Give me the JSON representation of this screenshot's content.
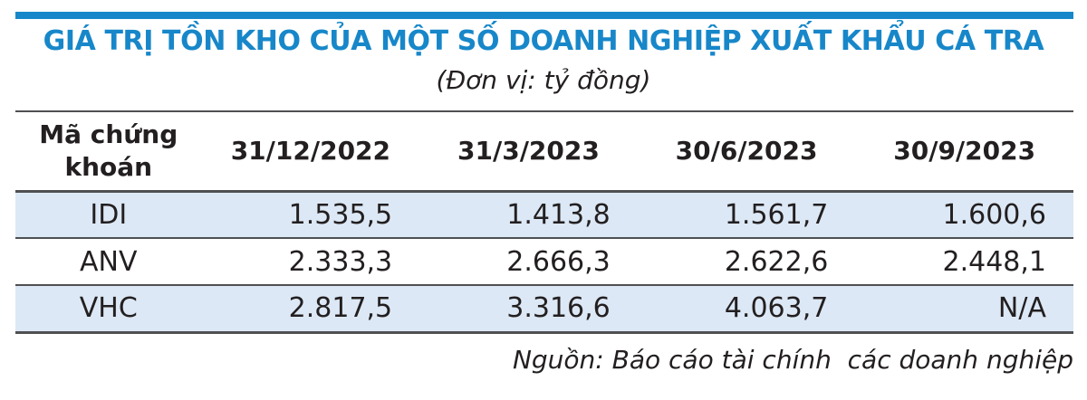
{
  "title": "GIÁ TRỊ TỒN KHO CỦA MỘT SỐ DOANH NGHIỆP XUẤT KHẨU CÁ TRA",
  "subtitle": "(Đơn vị: tỷ đồng)",
  "source": "Nguồn: Báo cáo tài chính  các doanh nghiệp",
  "colors": {
    "accent": "#1787c9",
    "band": "#dce8f5",
    "line": "#4f5052",
    "ink": "#231f20"
  },
  "chart_data": {
    "type": "table",
    "title": "GIÁ TRỊ TỒN KHO CỦA MỘT SỐ DOANH NGHIỆP XUẤT KHẨU CÁ TRA",
    "unit": "tỷ đồng",
    "columns": [
      "Mã chứng khoán",
      "31/12/2022",
      "31/3/2023",
      "30/6/2023",
      "30/9/2023"
    ],
    "rows": [
      {
        "code": "IDI",
        "values": [
          "1.535,5",
          "1.413,8",
          "1.561,7",
          "1.600,6"
        ]
      },
      {
        "code": "ANV",
        "values": [
          "2.333,3",
          "2.666,3",
          "2.622,6",
          "2.448,1"
        ]
      },
      {
        "code": "VHC",
        "values": [
          "2.817,5",
          "3.316,6",
          "4.063,7",
          "N/A"
        ]
      }
    ],
    "source": "Nguồn: Báo cáo tài chính  các doanh nghiệp",
    "layout": {
      "banded_rows": [
        0,
        2
      ],
      "value_alignment": "right"
    }
  }
}
